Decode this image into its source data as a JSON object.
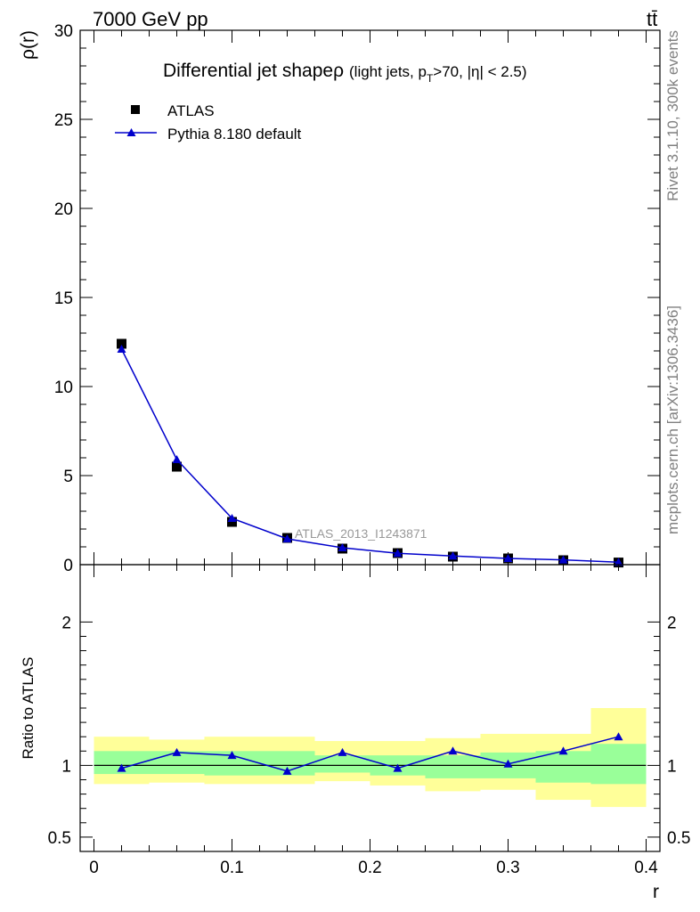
{
  "header": {
    "left": "7000 GeV pp",
    "right": "tt̄"
  },
  "side_labels": {
    "top": "Rivet 3.1.10,  300k events",
    "bottom": "mcplots.cern.ch [arXiv:1306.3436]"
  },
  "watermark": "ATLAS_2013_I1243871",
  "chart_data": {
    "type": "scatter",
    "title": "Differential jet shape",
    "title_symbol": "ρ",
    "title_detail": {
      "prefix": "(light jets, p",
      "sub": "T",
      "suffix": ">70, |η| < 2.5)"
    },
    "xlabel": "r",
    "xlim": [
      -0.01,
      0.41
    ],
    "x_ticks": [
      0,
      0.1,
      0.2,
      0.3,
      0.4
    ],
    "x_tick_labels": [
      "0",
      "0.1",
      "0.2",
      "0.3",
      "0.4"
    ],
    "main": {
      "ylabel": "ρ(r)",
      "ylim": [
        0,
        30
      ],
      "y_ticks": [
        0,
        5,
        10,
        15,
        20,
        25,
        30
      ],
      "y_tick_labels": [
        "0",
        "5",
        "10",
        "15",
        "20",
        "25",
        "30"
      ]
    },
    "ratio": {
      "ylabel": "Ratio to ATLAS",
      "ylim": [
        0.4,
        2.4
      ],
      "y_ticks": [
        0.5,
        1,
        2
      ],
      "y_tick_labels": [
        "0.5",
        "1",
        "2"
      ]
    },
    "legend": [
      {
        "name": "ATLAS",
        "marker": "square",
        "color": "#000000"
      },
      {
        "name": "Pythia 8.180 default",
        "marker": "triangle",
        "color": "#0000cc"
      }
    ],
    "bins": [
      [
        0.0,
        0.04
      ],
      [
        0.04,
        0.08
      ],
      [
        0.08,
        0.12
      ],
      [
        0.12,
        0.16
      ],
      [
        0.16,
        0.2
      ],
      [
        0.2,
        0.24
      ],
      [
        0.24,
        0.28
      ],
      [
        0.28,
        0.32
      ],
      [
        0.32,
        0.36
      ],
      [
        0.36,
        0.4
      ]
    ],
    "x": [
      0.02,
      0.06,
      0.1,
      0.14,
      0.18,
      0.22,
      0.26,
      0.3,
      0.34,
      0.38
    ],
    "series": [
      {
        "name": "ATLAS",
        "values": [
          12.4,
          5.5,
          2.4,
          1.5,
          0.9,
          0.65,
          0.45,
          0.35,
          0.25,
          0.12
        ]
      },
      {
        "name": "Pythia 8.180 default",
        "values": [
          12.1,
          5.9,
          2.6,
          1.45,
          0.95,
          0.64,
          0.49,
          0.35,
          0.27,
          0.14
        ]
      }
    ],
    "ratio_values": [
      0.98,
      1.09,
      1.07,
      0.96,
      1.09,
      0.98,
      1.1,
      1.01,
      1.1,
      1.2
    ],
    "band_stat": [
      [
        0.94,
        1.1
      ],
      [
        0.94,
        1.1
      ],
      [
        0.93,
        1.1
      ],
      [
        0.93,
        1.1
      ],
      [
        0.95,
        1.07
      ],
      [
        0.93,
        1.07
      ],
      [
        0.91,
        1.07
      ],
      [
        0.91,
        1.09
      ],
      [
        0.88,
        1.1
      ],
      [
        0.87,
        1.15
      ]
    ],
    "band_total": [
      [
        0.87,
        1.2
      ],
      [
        0.88,
        1.18
      ],
      [
        0.87,
        1.2
      ],
      [
        0.87,
        1.2
      ],
      [
        0.89,
        1.17
      ],
      [
        0.86,
        1.17
      ],
      [
        0.82,
        1.19
      ],
      [
        0.83,
        1.22
      ],
      [
        0.76,
        1.22
      ],
      [
        0.71,
        1.4
      ]
    ]
  }
}
